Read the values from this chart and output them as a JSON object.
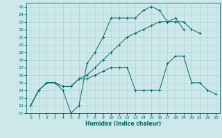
{
  "xlabel": "Humidex (Indice chaleur)",
  "bg_color": "#cce8ea",
  "grid_color": "#aacccc",
  "line_color": "#006666",
  "xlim": [
    -0.5,
    23.5
  ],
  "ylim": [
    11,
    25.5
  ],
  "xticks": [
    0,
    1,
    2,
    3,
    4,
    5,
    6,
    7,
    8,
    9,
    10,
    11,
    12,
    13,
    14,
    15,
    16,
    17,
    18,
    19,
    20,
    21,
    22,
    23
  ],
  "yticks": [
    11,
    12,
    13,
    14,
    15,
    16,
    17,
    18,
    19,
    20,
    21,
    22,
    23,
    24,
    25
  ],
  "series": [
    {
      "x": [
        0,
        1,
        2,
        3,
        4,
        5,
        6,
        7,
        8,
        9,
        10,
        11,
        12,
        13,
        14,
        15,
        16,
        17,
        18,
        19
      ],
      "y": [
        12,
        14,
        15,
        15,
        14,
        11,
        12,
        17.5,
        19,
        21,
        23.5,
        23.5,
        23.5,
        23.5,
        24.5,
        25,
        24.5,
        23,
        23.5,
        22
      ]
    },
    {
      "x": [
        0,
        1,
        2,
        3,
        4,
        5,
        6,
        7,
        8,
        9,
        10,
        11,
        12,
        13,
        14,
        15,
        16,
        17,
        18,
        19,
        20,
        21,
        22,
        23
      ],
      "y": [
        12,
        14,
        15,
        15,
        14.5,
        14.5,
        15.5,
        15.5,
        16,
        16.5,
        17,
        17,
        17,
        14,
        14,
        14,
        14,
        17.5,
        18.5,
        18.5,
        15,
        15,
        14,
        13.5
      ]
    },
    {
      "x": [
        0,
        1,
        2,
        3,
        4,
        5,
        6,
        7,
        8,
        9,
        10,
        11,
        12,
        13,
        14,
        15,
        16,
        17,
        18,
        19,
        20,
        21
      ],
      "y": [
        12,
        14,
        15,
        15,
        14.5,
        14.5,
        15.5,
        16,
        17,
        18,
        19,
        20,
        21,
        21.5,
        22,
        22.5,
        23,
        23,
        23,
        23,
        22,
        21.5
      ]
    }
  ]
}
